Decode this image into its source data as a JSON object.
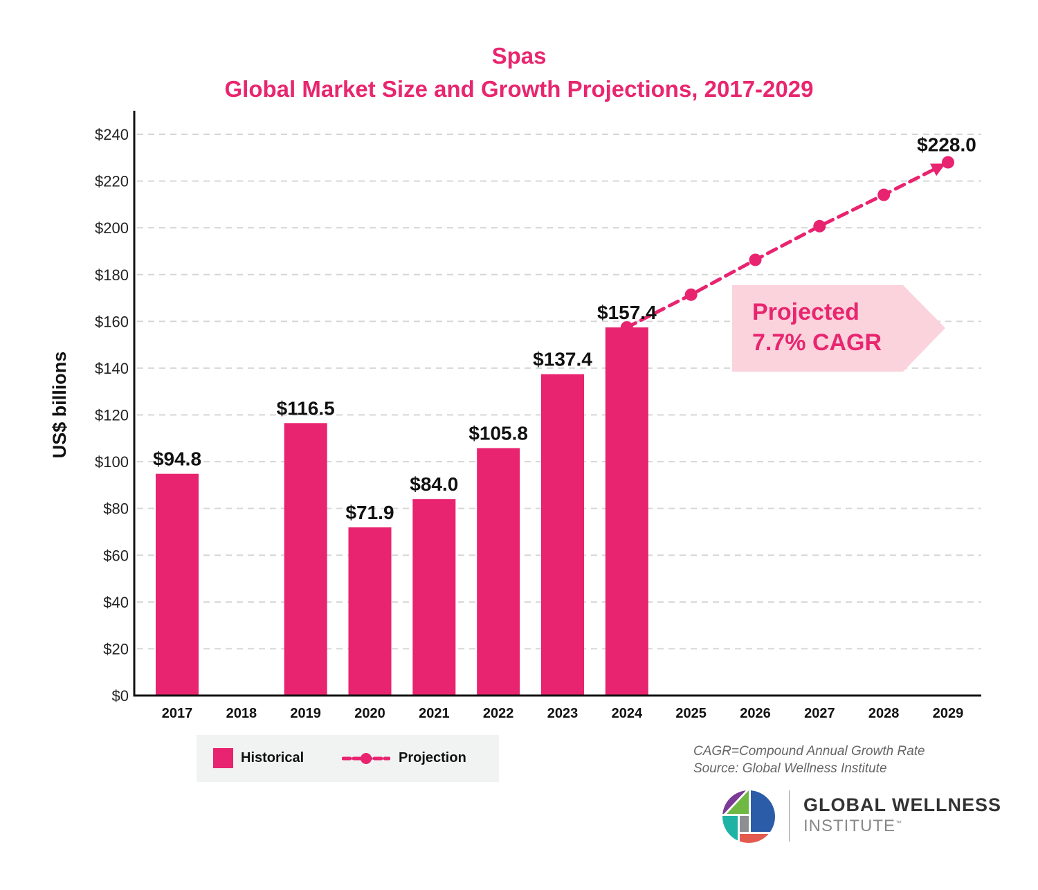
{
  "chart_data": {
    "type": "bar",
    "title": "Spas",
    "subtitle": "Global Market Size and Growth Projections, 2017-2029",
    "xlabel": "",
    "ylabel": "US$ billions",
    "ylim": [
      0,
      240
    ],
    "yticks": [
      0,
      20,
      40,
      60,
      80,
      100,
      120,
      140,
      160,
      180,
      200,
      220,
      240
    ],
    "ytick_labels": [
      "$0",
      "$20",
      "$40",
      "$60",
      "$80",
      "$100",
      "$120",
      "$140",
      "$160",
      "$180",
      "$200",
      "$220",
      "$240"
    ],
    "grid": "horizontal dashed",
    "categories": [
      "2017",
      "2018",
      "2019",
      "2020",
      "2021",
      "2022",
      "2023",
      "2024",
      "2025",
      "2026",
      "2027",
      "2028",
      "2029"
    ],
    "series": [
      {
        "name": "Historical",
        "type": "bar",
        "color": "#e8236f",
        "values": [
          94.8,
          null,
          116.5,
          71.9,
          84.0,
          105.8,
          137.4,
          157.4,
          null,
          null,
          null,
          null,
          null
        ],
        "labels": [
          "$94.8",
          "",
          "$116.5",
          "$71.9",
          "$84.0",
          "$105.8",
          "$137.4",
          "$157.4",
          "",
          "",
          "",
          "",
          ""
        ]
      },
      {
        "name": "Projection",
        "type": "line",
        "style": "dashed with markers",
        "color": "#e8236f",
        "values": [
          null,
          null,
          null,
          null,
          null,
          null,
          null,
          157.4,
          171.4,
          186.3,
          200.7,
          214.1,
          228.0
        ],
        "labels": [
          "",
          "",
          "",
          "",
          "",
          "",
          "",
          "",
          "",
          "",
          "",
          "",
          "$228.0"
        ]
      }
    ],
    "annotations": [
      {
        "text_line1": "Projected",
        "text_line2": "7.7% CAGR",
        "style": "pink arrow callout"
      }
    ],
    "legend": {
      "position": "bottom-left",
      "entries": [
        "Historical",
        "Projection"
      ]
    }
  },
  "notes": {
    "line1": "CAGR=Compound Annual Growth Rate",
    "line2": "Source: Global Wellness Institute"
  },
  "logo": {
    "line1": "GLOBAL WELLNESS",
    "line2": "INSTITUTE",
    "tm": "™"
  },
  "colors": {
    "accent": "#e8236f",
    "callout_bg": "#fbd3dd",
    "legend_bg": "#f1f2f2",
    "grid": "#d6d6d6"
  }
}
